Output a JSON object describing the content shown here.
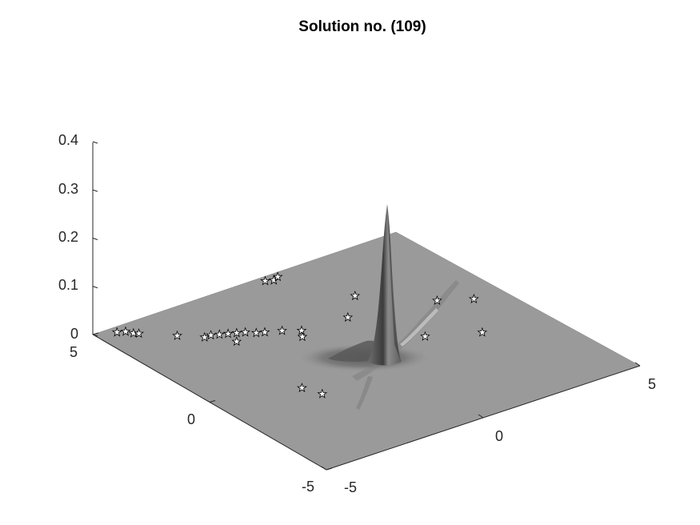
{
  "chart_data": {
    "type": "surface",
    "title": "Solution no. (109)",
    "xlabel": "",
    "ylabel": "",
    "zlabel": "",
    "xlim": [
      -5,
      5
    ],
    "ylim": [
      -5,
      5
    ],
    "zlim": [
      0,
      0.4
    ],
    "x_ticks": [
      "-5",
      "0",
      "5"
    ],
    "y_ticks": [
      "-5",
      "0",
      "5"
    ],
    "z_ticks": [
      "0",
      "0.1",
      "0.2",
      "0.3",
      "0.4"
    ],
    "surface_color": "#9a9a9a",
    "peak": {
      "x": 1.0,
      "y": 0.6,
      "z": 0.27
    },
    "marker_symbol": "pentagram",
    "marker_color": "#000000",
    "markers": [
      {
        "x": -4.6,
        "y": 4.5,
        "z": 0.01
      },
      {
        "x": -4.4,
        "y": 4.4,
        "z": 0.01
      },
      {
        "x": -4.3,
        "y": 4.2,
        "z": 0.01
      },
      {
        "x": -4.2,
        "y": 4.1,
        "z": 0.01
      },
      {
        "x": -3.5,
        "y": 3.4,
        "z": 0.01
      },
      {
        "x": -3.0,
        "y": 2.9,
        "z": 0.01
      },
      {
        "x": -2.8,
        "y": 2.9,
        "z": 0.01
      },
      {
        "x": -2.6,
        "y": 2.8,
        "z": 0.01
      },
      {
        "x": -2.4,
        "y": 2.7,
        "z": 0.01
      },
      {
        "x": -2.2,
        "y": 2.6,
        "z": 0.01
      },
      {
        "x": -2.0,
        "y": 2.5,
        "z": 0.01
      },
      {
        "x": -1.8,
        "y": 2.3,
        "z": 0.01
      },
      {
        "x": -1.6,
        "y": 2.2,
        "z": 0.01
      },
      {
        "x": -1.2,
        "y": 2.0,
        "z": 0.01
      },
      {
        "x": -0.8,
        "y": 1.7,
        "z": 0.01
      },
      {
        "x": -2.5,
        "y": 2.2,
        "z": 0.01
      },
      {
        "x": 0.2,
        "y": 4.6,
        "z": 0.01
      },
      {
        "x": 0.4,
        "y": 4.5,
        "z": 0.01
      },
      {
        "x": 0.6,
        "y": 4.6,
        "z": 0.01
      },
      {
        "x": 1.5,
        "y": 2.5,
        "z": 0.01
      },
      {
        "x": 3.0,
        "y": 1.0,
        "z": 0.01
      },
      {
        "x": 3.8,
        "y": 0.5,
        "z": 0.01
      },
      {
        "x": 1.5,
        "y": -0.5,
        "z": 0.01
      },
      {
        "x": 2.8,
        "y": -1.2,
        "z": 0.01
      },
      {
        "x": -2.8,
        "y": -1.0,
        "z": 0.01
      },
      {
        "x": -2.6,
        "y": -1.6,
        "z": 0.01
      },
      {
        "x": -1.0,
        "y": 1.4,
        "z": 0.01
      },
      {
        "x": 0.6,
        "y": 1.6,
        "z": 0.01
      }
    ]
  }
}
